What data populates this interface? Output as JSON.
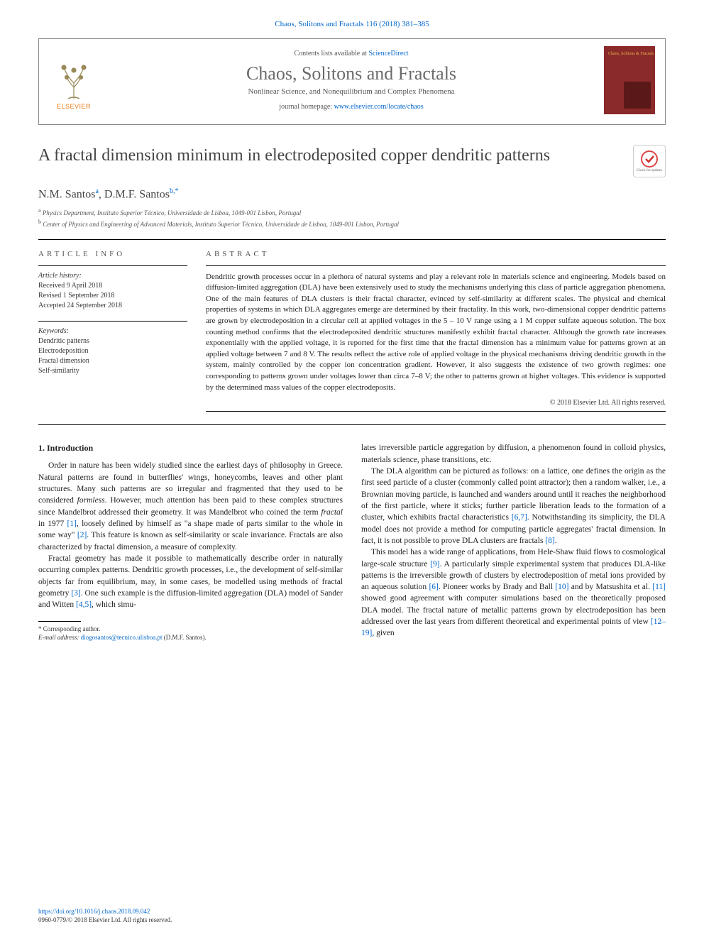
{
  "page_header": "Chaos, Solitons and Fractals 116 (2018) 381–385",
  "journal_box": {
    "contents_prefix": "Contents lists available at ",
    "contents_link": "ScienceDirect",
    "title": "Chaos, Solitons and Fractals",
    "subtitle": "Nonlinear Science, and Nonequilibrium and Complex Phenomena",
    "homepage_prefix": "journal homepage: ",
    "homepage_link": "www.elsevier.com/locate/chaos",
    "elsevier_label": "ELSEVIER",
    "cover_text": "Chaos,\nSolitons\n& Fractals"
  },
  "article": {
    "title": "A fractal dimension minimum in electrodeposited copper dendritic patterns",
    "authors_html": "N.M. Santos<sup>a</sup>, D.M.F. Santos<sup>b,*</sup>",
    "affiliations": [
      "a Physics Department, Instituto Superior Técnico, Universidade de Lisboa, 1049-001 Lisbon, Portugal",
      "b Center of Physics and Engineering of Advanced Materials, Instituto Superior Técnico, Universidade de Lisboa, 1049-001 Lisbon, Portugal"
    ],
    "check_updates": "Check for updates"
  },
  "info": {
    "heading": "ARTICLE INFO",
    "history_label": "Article history:",
    "history": [
      "Received 9 April 2018",
      "Revised 1 September 2018",
      "Accepted 24 September 2018"
    ],
    "keywords_label": "Keywords:",
    "keywords": [
      "Dendritic patterns",
      "Electrodeposition",
      "Fractal dimension",
      "Self-similarity"
    ]
  },
  "abstract": {
    "heading": "ABSTRACT",
    "text": "Dendritic growth processes occur in a plethora of natural systems and play a relevant role in materials science and engineering. Models based on diffusion-limited aggregation (DLA) have been extensively used to study the mechanisms underlying this class of particle aggregation phenomena. One of the main features of DLA clusters is their fractal character, evinced by self-similarity at different scales. The physical and chemical properties of systems in which DLA aggregates emerge are determined by their fractality. In this work, two-dimensional copper dendritic patterns are grown by electrodeposition in a circular cell at applied voltages in the 5 – 10 V range using a 1 M copper sulfate aqueous solution. The box counting method confirms that the electrodeposited dendritic structures manifestly exhibit fractal character. Although the growth rate increases exponentially with the applied voltage, it is reported for the first time that the fractal dimension has a minimum value for patterns grown at an applied voltage between 7 and 8 V. The results reflect the active role of applied voltage in the physical mechanisms driving dendritic growth in the system, mainly controlled by the copper ion concentration gradient. However, it also suggests the existence of two growth regimes: one corresponding to patterns grown under voltages lower than circa 7–8 V; the other to patterns grown at higher voltages. This evidence is supported by the determined mass values of the copper electrodeposits.",
    "copyright": "© 2018 Elsevier Ltd. All rights reserved."
  },
  "body": {
    "section_heading": "1. Introduction",
    "col1": {
      "p1": "Order in nature has been widely studied since the earliest days of philosophy in Greece. Natural patterns are found in butterflies' wings, honeycombs, leaves and other plant structures. Many such patterns are so irregular and fragmented that they used to be considered formless. However, much attention has been paid to these complex structures since Mandelbrot addressed their geometry. It was Mandelbrot who coined the term fractal in 1977 [1], loosely defined by himself as \"a shape made of parts similar to the whole in some way\" [2]. This feature is known as self-similarity or scale invariance. Fractals are also characterized by fractal dimension, a measure of complexity.",
      "p2": "Fractal geometry has made it possible to mathematically describe order in naturally occurring complex patterns. Dendritic growth processes, i.e., the development of self-similar objects far from equilibrium, may, in some cases, be modelled using methods of fractal geometry [3]. One such example is the diffusion-limited aggregation (DLA) model of Sander and Witten [4,5], which simu-"
    },
    "col2": {
      "p1": "lates irreversible particle aggregation by diffusion, a phenomenon found in colloid physics, materials science, phase transitions, etc.",
      "p2": "The DLA algorithm can be pictured as follows: on a lattice, one defines the origin as the first seed particle of a cluster (commonly called point attractor); then a random walker, i.e., a Brownian moving particle, is launched and wanders around until it reaches the neighborhood of the first particle, where it sticks; further particle liberation leads to the formation of a cluster, which exhibits fractal characteristics [6,7]. Notwithstanding its simplicity, the DLA model does not provide a method for computing particle aggregates' fractal dimension. In fact, it is not possible to prove DLA clusters are fractals [8].",
      "p3": "This model has a wide range of applications, from Hele-Shaw fluid flows to cosmological large-scale structure [9]. A particularly simple experimental system that produces DLA-like patterns is the irreversible growth of clusters by electrodeposition of metal ions provided by an aqueous solution [6]. Pioneer works by Brady and Ball [10] and by Matsushita et al. [11] showed good agreement with computer simulations based on the theoretically proposed DLA model. The fractal nature of metallic patterns grown by electrodeposition has been addressed over the last years from different theoretical and experimental points of view [12–19], given"
    }
  },
  "footnote": {
    "corr": "* Corresponding author.",
    "email_label": "E-mail address: ",
    "email": "diogosantos@tecnico.ulisboa.pt",
    "email_suffix": " (D.M.F. Santos)."
  },
  "footer": {
    "doi": "https://doi.org/10.1016/j.chaos.2018.09.042",
    "issn": "0960-0779/© 2018 Elsevier Ltd. All rights reserved."
  },
  "colors": {
    "link": "#0066cc",
    "elsevier_orange": "#e67817",
    "cover_bg": "#8b2a2a",
    "cover_accent": "#e6b84a",
    "heading_gray": "#6a6a6a"
  }
}
